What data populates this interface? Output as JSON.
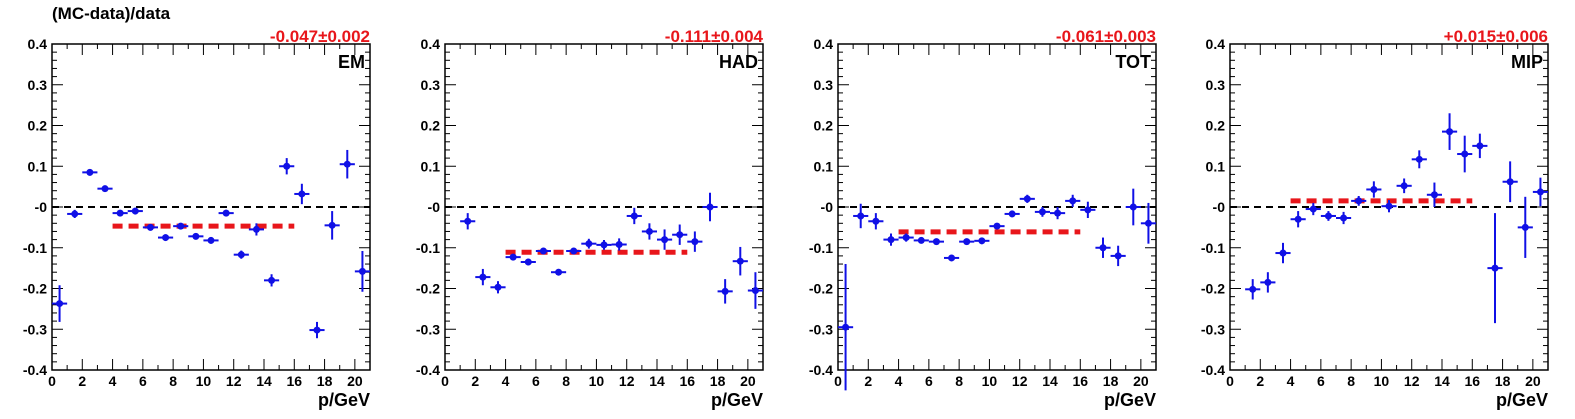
{
  "figure": {
    "y_title": "(MC-data)/data"
  },
  "chart_data": [
    {
      "type": "scatter",
      "panel_label": "EM",
      "fit_result": "-0.047±0.002",
      "xlabel": "p/GeV",
      "ylabel": "(MC-data)/data",
      "xlim": [
        0,
        21
      ],
      "ylim": [
        -0.4,
        0.4
      ],
      "x_ticks": [
        "0",
        "2",
        "4",
        "6",
        "8",
        "10",
        "12",
        "14",
        "16",
        "18",
        "20"
      ],
      "y_ticks": [
        "-0.4",
        "-0.3",
        "-0.2",
        "-0.1",
        "-0",
        "0.1",
        "0.2",
        "0.3",
        "0.4"
      ],
      "reference_line": {
        "y": 0,
        "style": "dashed",
        "color": "#000000"
      },
      "fit_line": {
        "x_range": [
          4,
          16
        ],
        "y": -0.047,
        "style": "dashed",
        "color": "#e8161b"
      },
      "series": [
        {
          "values_x": [
            0.5,
            1.5,
            2.5,
            3.5,
            4.5,
            5.5,
            6.5,
            7.5,
            8.5,
            9.5,
            10.5,
            11.5,
            12.5,
            13.5,
            14.5,
            15.5,
            16.5,
            17.5,
            18.5,
            19.5,
            20.5
          ],
          "values_y": [
            -0.237,
            -0.017,
            0.085,
            0.045,
            -0.015,
            -0.01,
            -0.05,
            -0.075,
            -0.047,
            -0.072,
            -0.082,
            -0.015,
            -0.117,
            -0.055,
            -0.18,
            0.1,
            0.032,
            -0.302,
            -0.045,
            0.105,
            -0.158
          ],
          "errors": [
            0.045,
            0.01,
            0.008,
            0.006,
            0.007,
            0.008,
            0.008,
            0.008,
            0.006,
            0.007,
            0.008,
            0.008,
            0.01,
            0.015,
            0.015,
            0.02,
            0.025,
            0.02,
            0.035,
            0.035,
            0.05
          ]
        }
      ]
    },
    {
      "type": "scatter",
      "panel_label": "HAD",
      "fit_result": "-0.111±0.004",
      "xlabel": "p/GeV",
      "ylabel": "(MC-data)/data",
      "xlim": [
        0,
        21
      ],
      "ylim": [
        -0.4,
        0.4
      ],
      "x_ticks": [
        "0",
        "2",
        "4",
        "6",
        "8",
        "10",
        "12",
        "14",
        "16",
        "18",
        "20"
      ],
      "y_ticks": [
        "-0.4",
        "-0.3",
        "-0.2",
        "-0.1",
        "-0",
        "0.1",
        "0.2",
        "0.3",
        "0.4"
      ],
      "reference_line": {
        "y": 0,
        "style": "dashed",
        "color": "#000000"
      },
      "fit_line": {
        "x_range": [
          4,
          16
        ],
        "y": -0.111,
        "style": "dashed",
        "color": "#e8161b"
      },
      "series": [
        {
          "values_x": [
            1.5,
            2.5,
            3.5,
            4.5,
            5.5,
            6.5,
            7.5,
            8.5,
            9.5,
            10.5,
            11.5,
            12.5,
            13.5,
            14.5,
            15.5,
            16.5,
            17.5,
            18.5,
            19.5,
            20.5
          ],
          "values_y": [
            -0.035,
            -0.172,
            -0.197,
            -0.123,
            -0.135,
            -0.108,
            -0.16,
            -0.108,
            -0.09,
            -0.093,
            -0.092,
            -0.022,
            -0.06,
            -0.08,
            -0.068,
            -0.085,
            0.0,
            -0.207,
            -0.133,
            -0.205
          ],
          "errors": [
            0.02,
            0.02,
            0.015,
            0.008,
            0.008,
            0.006,
            0.008,
            0.005,
            0.012,
            0.012,
            0.015,
            0.02,
            0.02,
            0.025,
            0.025,
            0.025,
            0.035,
            0.03,
            0.035,
            0.045
          ]
        }
      ]
    },
    {
      "type": "scatter",
      "panel_label": "TOT",
      "fit_result": "-0.061±0.003",
      "xlabel": "p/GeV",
      "ylabel": "(MC-data)/data",
      "xlim": [
        0,
        21
      ],
      "ylim": [
        -0.4,
        0.4
      ],
      "x_ticks": [
        "0",
        "2",
        "4",
        "6",
        "8",
        "10",
        "12",
        "14",
        "16",
        "18",
        "20"
      ],
      "y_ticks": [
        "-0.4",
        "-0.3",
        "-0.2",
        "-0.1",
        "-0",
        "0.1",
        "0.2",
        "0.3",
        "0.4"
      ],
      "reference_line": {
        "y": 0,
        "style": "dashed",
        "color": "#000000"
      },
      "fit_line": {
        "x_range": [
          4,
          16
        ],
        "y": -0.061,
        "style": "dashed",
        "color": "#e8161b"
      },
      "series": [
        {
          "values_x": [
            0.5,
            1.5,
            2.5,
            3.5,
            4.5,
            5.5,
            6.5,
            7.5,
            8.5,
            9.5,
            10.5,
            11.5,
            12.5,
            13.5,
            14.5,
            15.5,
            16.5,
            17.5,
            18.5,
            19.5,
            20.5
          ],
          "values_y": [
            -0.295,
            -0.022,
            -0.035,
            -0.08,
            -0.075,
            -0.082,
            -0.085,
            -0.125,
            -0.085,
            -0.083,
            -0.047,
            -0.017,
            0.02,
            -0.012,
            -0.015,
            0.015,
            -0.007,
            -0.1,
            -0.12,
            0.0,
            -0.04
          ],
          "errors": [
            0.155,
            0.03,
            0.02,
            0.015,
            0.01,
            0.006,
            0.006,
            0.006,
            0.006,
            0.008,
            0.006,
            0.008,
            0.01,
            0.012,
            0.015,
            0.015,
            0.02,
            0.025,
            0.025,
            0.045,
            0.05
          ]
        }
      ]
    },
    {
      "type": "scatter",
      "panel_label": "MIP",
      "fit_result": "+0.015±0.006",
      "xlabel": "p/GeV",
      "ylabel": "(MC-data)/data",
      "xlim": [
        0,
        21
      ],
      "ylim": [
        -0.4,
        0.4
      ],
      "x_ticks": [
        "0",
        "2",
        "4",
        "6",
        "8",
        "10",
        "12",
        "14",
        "16",
        "18",
        "20"
      ],
      "y_ticks": [
        "-0.4",
        "-0.3",
        "-0.2",
        "-0.1",
        "-0",
        "0.1",
        "0.2",
        "0.3",
        "0.4"
      ],
      "reference_line": {
        "y": 0,
        "style": "dashed",
        "color": "#000000"
      },
      "fit_line": {
        "x_range": [
          4,
          16
        ],
        "y": 0.015,
        "style": "dashed",
        "color": "#e8161b"
      },
      "series": [
        {
          "values_x": [
            1.5,
            2.5,
            3.5,
            4.5,
            5.5,
            6.5,
            7.5,
            8.5,
            9.5,
            10.5,
            11.5,
            12.5,
            13.5,
            14.5,
            15.5,
            16.5,
            17.5,
            18.5,
            19.5,
            20.5
          ],
          "values_y": [
            -0.202,
            -0.185,
            -0.113,
            -0.03,
            -0.005,
            -0.022,
            -0.027,
            0.015,
            0.043,
            0.002,
            0.052,
            0.117,
            0.03,
            0.185,
            0.13,
            0.15,
            -0.15,
            0.062,
            -0.05,
            0.037
          ],
          "errors": [
            0.025,
            0.025,
            0.025,
            0.02,
            0.015,
            0.012,
            0.015,
            0.012,
            0.02,
            0.015,
            0.018,
            0.022,
            0.03,
            0.045,
            0.045,
            0.03,
            0.135,
            0.05,
            0.075,
            0.035
          ]
        }
      ]
    }
  ]
}
